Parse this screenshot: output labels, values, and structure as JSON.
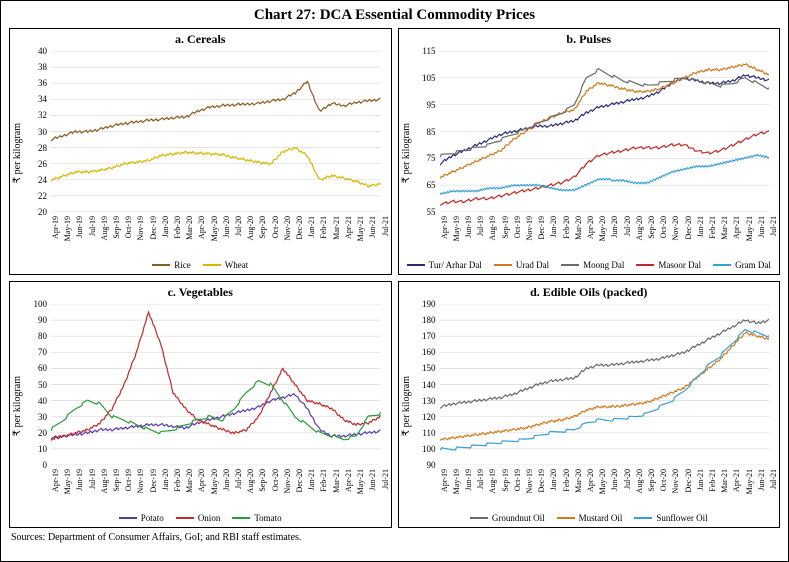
{
  "title": "Chart 27: DCA Essential Commodity Prices",
  "sources": "Sources: Department of Consumer Affairs, GoI; and RBI staff estimates.",
  "x_labels": [
    "Apr-19",
    "May-19",
    "Jun-19",
    "Jul-19",
    "Aug-19",
    "Sep-19",
    "Oct-19",
    "Nov-19",
    "Dec-19",
    "Jan-20",
    "Feb-20",
    "Mar-20",
    "Apr-20",
    "May-20",
    "Jun-20",
    "Jul-20",
    "Aug-20",
    "Sep-20",
    "Oct-20",
    "Nov-20",
    "Dec-20",
    "Jan-21",
    "Feb-21",
    "Mar-21",
    "Apr-21",
    "May-21",
    "Jun-21",
    "Jul-21"
  ],
  "panels": {
    "a": {
      "title": "a. Cereals",
      "ylabel": "₹ per kilogram",
      "ylim": [
        20,
        40
      ],
      "ytick_step": 2,
      "grid_color": "#d9d9d9",
      "series": [
        {
          "name": "Rice",
          "color": "#8a5a1f",
          "values": [
            29,
            29.5,
            30,
            30,
            30.3,
            30.7,
            31,
            31.2,
            31.4,
            31.5,
            31.7,
            31.8,
            32.5,
            33,
            33.2,
            33.3,
            33.4,
            33.5,
            33.8,
            34,
            34.8,
            36.2,
            32.5,
            33.5,
            33.2,
            33.6,
            33.8,
            34
          ]
        },
        {
          "name": "Wheat",
          "color": "#d4b800",
          "values": [
            24,
            24.5,
            25,
            25,
            25.2,
            25.5,
            26,
            26.2,
            26.4,
            27,
            27.2,
            27.4,
            27.3,
            27.2,
            27.1,
            26.8,
            26.5,
            26.2,
            26,
            27.5,
            28,
            27,
            24,
            24.5,
            24.2,
            23.8,
            23.2,
            23.5
          ]
        }
      ]
    },
    "b": {
      "title": "b. Pulses",
      "ylabel": "₹ per kilogram",
      "ylim": [
        55,
        115
      ],
      "ytick_step": 10,
      "grid_color": "#d9d9d9",
      "series": [
        {
          "name": "Tur/ Arhar Dal",
          "color": "#2a2a7a",
          "values": [
            73,
            76,
            78,
            80,
            82,
            84,
            85,
            86,
            87,
            87,
            88,
            89,
            92,
            94,
            95,
            96,
            97,
            98,
            100,
            103,
            105,
            104,
            103,
            103,
            104,
            106,
            105,
            104
          ]
        },
        {
          "name": "Urad Dal",
          "color": "#d07a1a",
          "values": [
            68,
            70,
            72,
            74,
            76,
            78,
            82,
            85,
            88,
            90,
            92,
            93,
            100,
            103,
            102,
            101,
            100,
            100,
            101,
            103,
            105,
            107,
            108,
            108,
            109,
            110,
            108,
            106
          ]
        },
        {
          "name": "Moong Dal",
          "color": "#6a6a6a",
          "values": [
            76,
            77,
            78,
            79,
            80,
            82,
            84,
            86,
            88,
            90,
            92,
            95,
            105,
            108,
            106,
            104,
            103,
            102,
            103,
            104,
            105,
            104,
            103,
            102,
            103,
            105,
            103,
            101
          ]
        },
        {
          "name": "Masoor Dal",
          "color": "#c22828",
          "values": [
            58,
            59,
            59,
            60,
            60,
            61,
            62,
            63,
            64,
            65,
            66,
            68,
            73,
            76,
            77,
            78,
            79,
            79,
            79,
            80,
            80,
            78,
            77,
            78,
            80,
            82,
            84,
            85
          ]
        },
        {
          "name": "Gram Dal",
          "color": "#3a9fd4",
          "values": [
            62,
            63,
            63,
            63,
            64,
            64,
            65,
            65,
            65,
            64,
            63,
            63,
            65,
            67,
            67,
            67,
            66,
            66,
            68,
            70,
            71,
            72,
            72,
            73,
            74,
            75,
            76,
            75
          ]
        }
      ]
    },
    "c": {
      "title": "c. Vegetables",
      "ylabel": "₹ per kilogram",
      "ylim": [
        0,
        100
      ],
      "ytick_step": 10,
      "grid_color": "#d9d9d9",
      "series": [
        {
          "name": "Potato",
          "color": "#5a3aa8",
          "values": [
            17,
            18,
            19,
            20,
            22,
            22,
            23,
            24,
            25,
            25,
            24,
            23,
            26,
            28,
            30,
            32,
            34,
            36,
            40,
            42,
            44,
            35,
            22,
            18,
            18,
            19,
            20,
            21
          ]
        },
        {
          "name": "Onion",
          "color": "#c22828",
          "values": [
            16,
            18,
            20,
            22,
            26,
            35,
            50,
            70,
            95,
            75,
            45,
            35,
            28,
            25,
            22,
            20,
            22,
            30,
            45,
            60,
            50,
            40,
            38,
            35,
            28,
            25,
            26,
            30
          ]
        },
        {
          "name": "Tomato",
          "color": "#2a9a3a",
          "values": [
            22,
            28,
            35,
            40,
            38,
            30,
            28,
            25,
            22,
            20,
            22,
            25,
            28,
            30,
            28,
            35,
            45,
            52,
            50,
            40,
            30,
            25,
            20,
            18,
            16,
            18,
            30,
            32
          ]
        }
      ]
    },
    "d": {
      "title": "d. Edible Oils (packed)",
      "ylabel": "₹ per kilogram",
      "ylim": [
        90,
        190
      ],
      "ytick_step": 10,
      "grid_color": "#d9d9d9",
      "series": [
        {
          "name": "Groundnut Oil",
          "color": "#6a6a6a",
          "values": [
            126,
            128,
            129,
            130,
            131,
            132,
            134,
            137,
            140,
            142,
            143,
            144,
            150,
            152,
            152,
            153,
            154,
            155,
            156,
            158,
            160,
            164,
            168,
            172,
            176,
            180,
            178,
            180
          ]
        },
        {
          "name": "Mustard Oil",
          "color": "#d07a1a",
          "values": [
            106,
            107,
            108,
            109,
            110,
            111,
            112,
            113,
            115,
            117,
            118,
            120,
            124,
            126,
            126,
            127,
            128,
            129,
            132,
            135,
            138,
            144,
            150,
            156,
            164,
            172,
            170,
            168
          ]
        },
        {
          "name": "Sunflower Oil",
          "color": "#3a9fd4",
          "values": [
            100,
            100,
            101,
            102,
            103,
            104,
            105,
            106,
            108,
            110,
            111,
            112,
            116,
            118,
            118,
            119,
            120,
            122,
            126,
            130,
            136,
            144,
            152,
            158,
            166,
            174,
            172,
            170
          ]
        }
      ]
    }
  }
}
